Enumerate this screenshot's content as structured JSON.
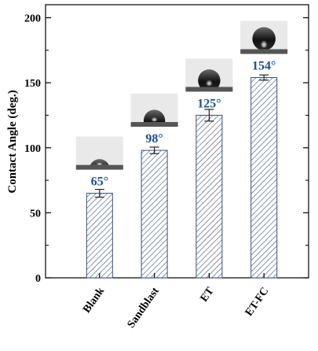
{
  "chart_data": {
    "type": "bar",
    "categories": [
      "Blank",
      "Sandblast",
      "ET",
      "ET-FC"
    ],
    "values": [
      65,
      98,
      125,
      154
    ],
    "error": [
      3,
      2.5,
      4.5,
      2
    ],
    "ylabel": "Contact Angle (deg.)",
    "ylim": [
      0,
      210
    ],
    "yticks": [
      0,
      50,
      100,
      150,
      200
    ],
    "data_labels": [
      "65°",
      "98°",
      "125°",
      "154°"
    ],
    "value_label_color": "#1f4e8c",
    "bar_pattern_color": "#3a4f7a"
  }
}
